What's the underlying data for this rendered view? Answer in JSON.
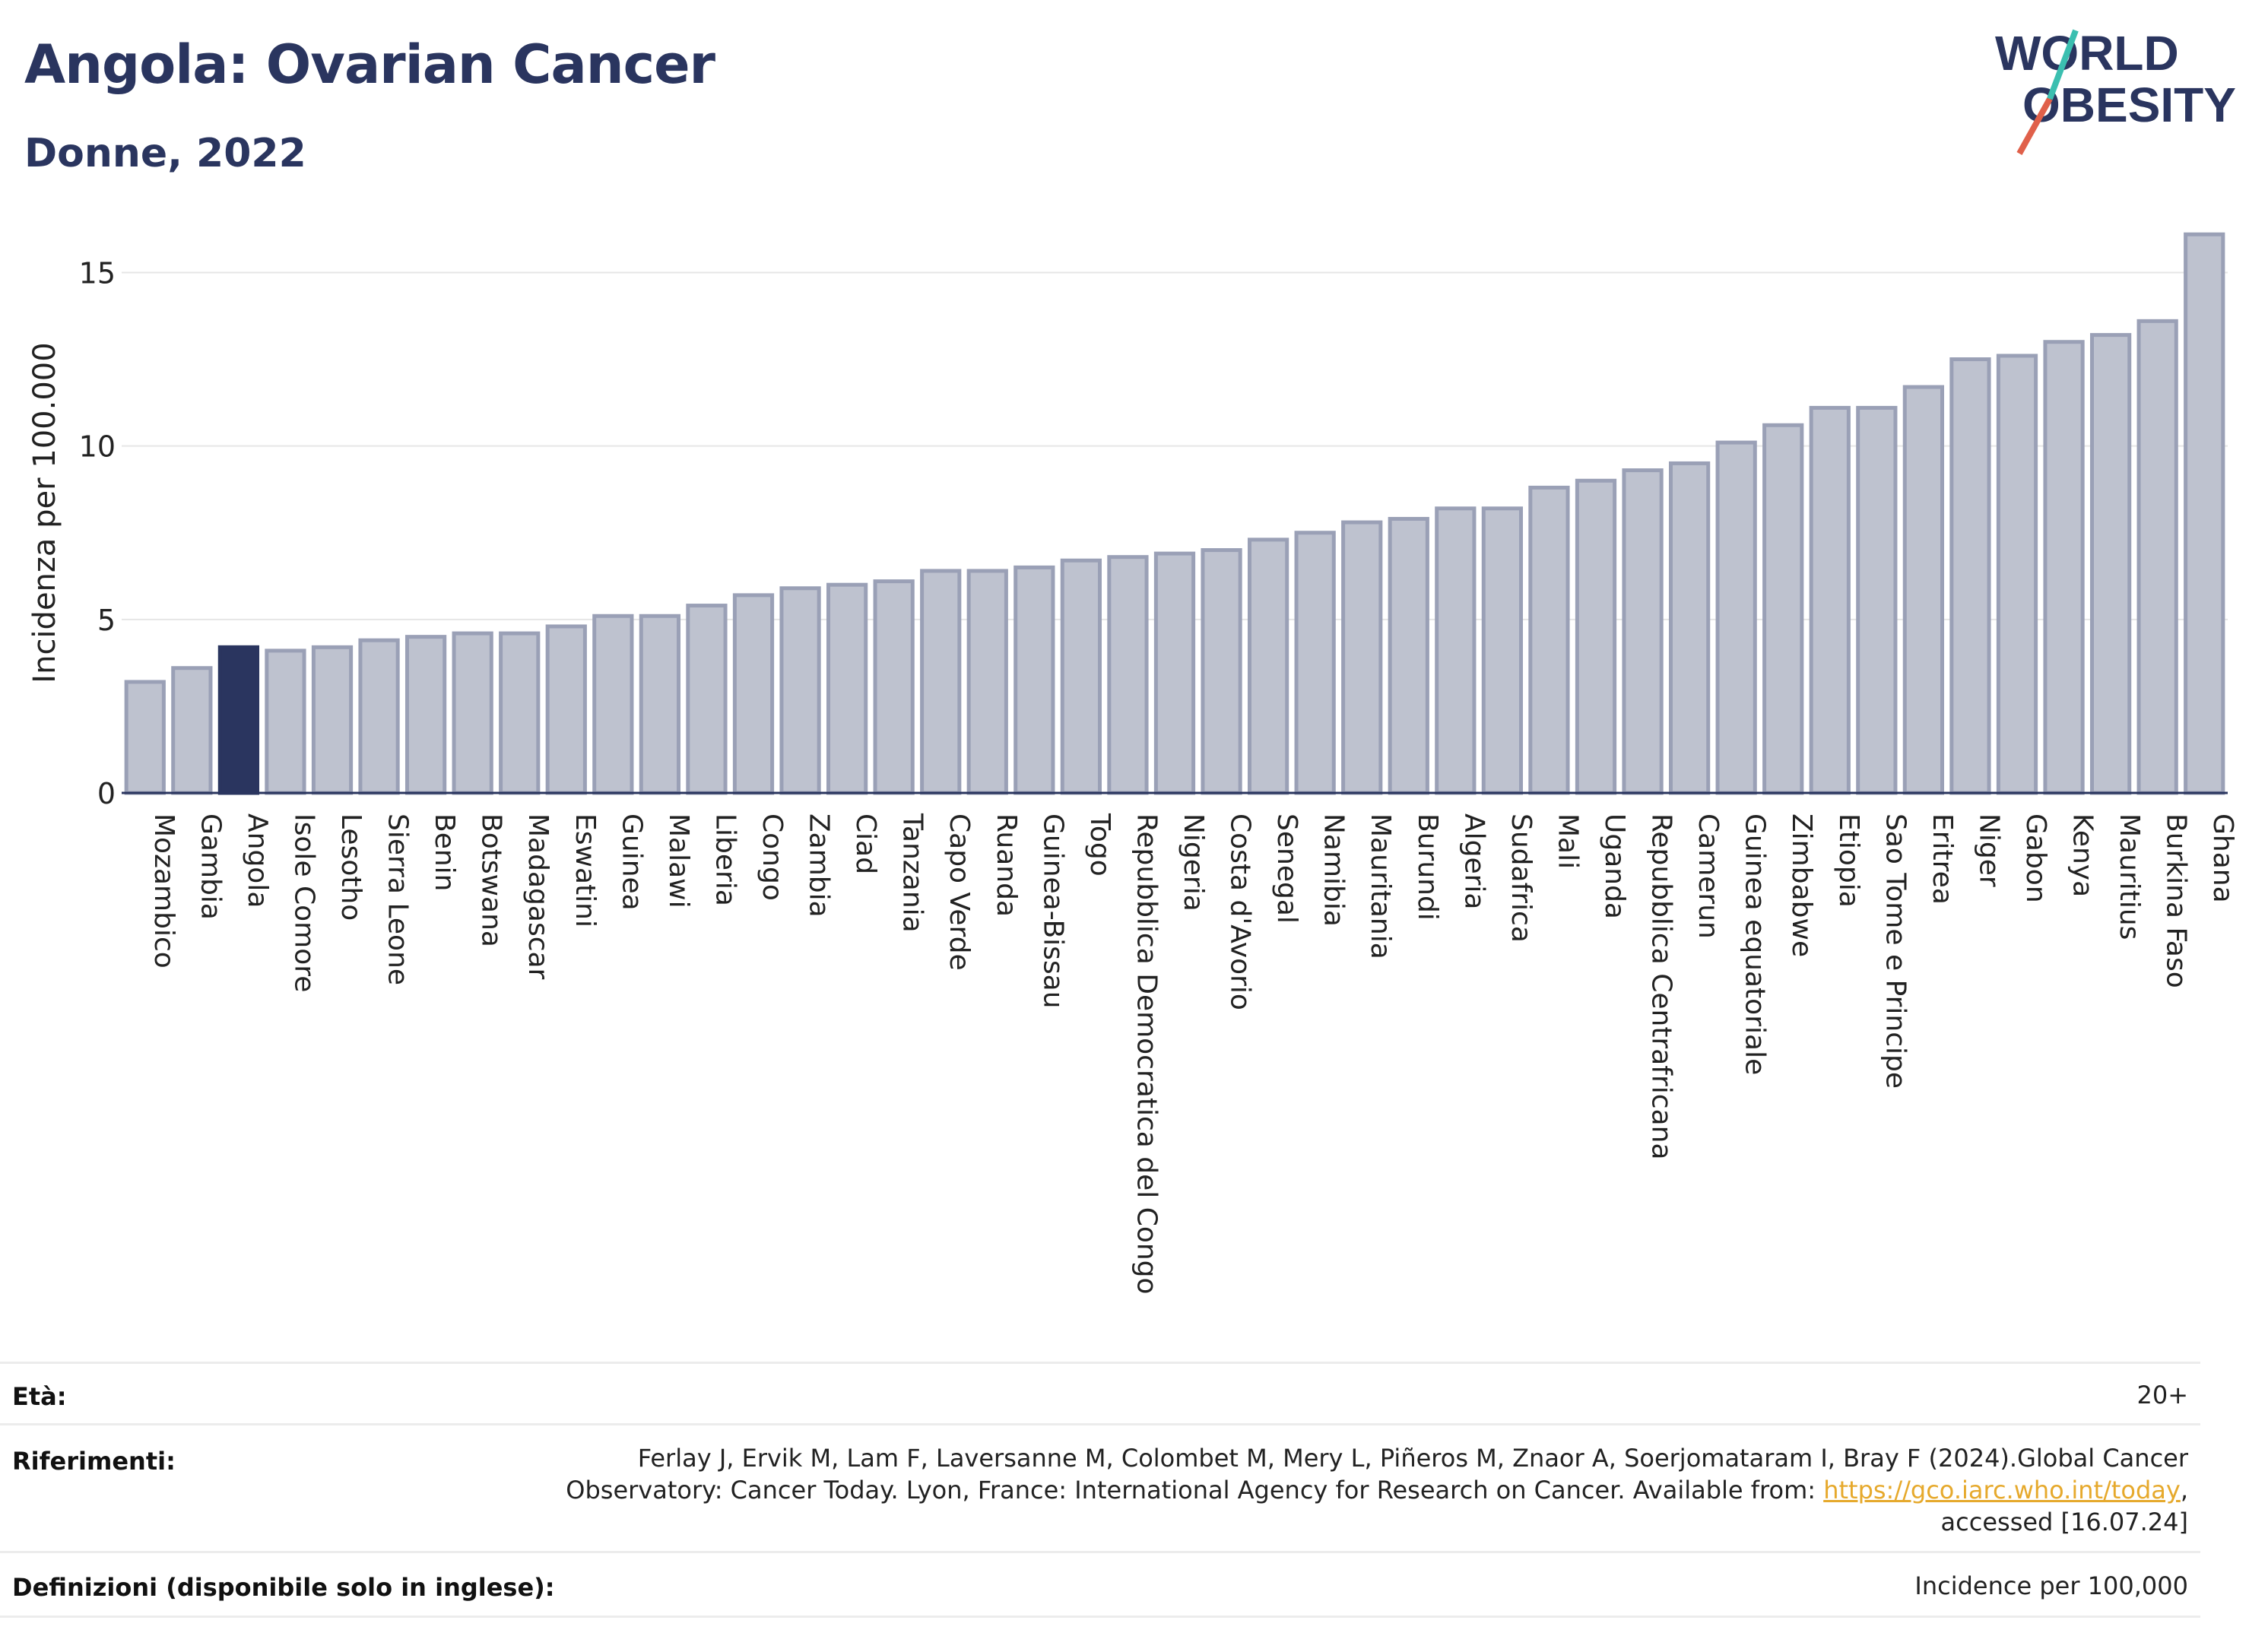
{
  "header": {
    "title": "Angola: Ovarian Cancer",
    "subtitle": "Donne, 2022"
  },
  "logo": {
    "line1": "WORLD",
    "line2": "OBESITY",
    "colors": {
      "text": "#2a355f",
      "slash_teal": "#3bbfb0",
      "slash_red": "#e0604a"
    }
  },
  "chart_data": {
    "type": "bar",
    "ylabel": "Incidenza per 100.000",
    "xlabel": "",
    "ylim": [
      0,
      16.5
    ],
    "yticks": [
      0,
      5,
      10,
      15
    ],
    "grid": true,
    "highlight": "Angola",
    "colors": {
      "bar": "#bec2cf",
      "bar_border": "#9aa0b6",
      "highlight": "#2a355f",
      "axis": "#2a355f",
      "grid": "#e6e6e6"
    },
    "categories": [
      "Mozambico",
      "Gambia",
      "Angola",
      "Isole Comore",
      "Lesotho",
      "Sierra Leone",
      "Benin",
      "Botswana",
      "Madagascar",
      "Eswatini",
      "Guinea",
      "Malawi",
      "Liberia",
      "Congo",
      "Zambia",
      "Ciad",
      "Tanzania",
      "Capo Verde",
      "Ruanda",
      "Guinea-Bissau",
      "Togo",
      "Repubblica Democratica del Congo",
      "Nigeria",
      "Costa d'Avorio",
      "Senegal",
      "Namibia",
      "Mauritania",
      "Burundi",
      "Algeria",
      "Sudafrica",
      "Mali",
      "Uganda",
      "Repubblica Centrafricana",
      "Camerun",
      "Guinea equatoriale",
      "Zimbabwe",
      "Etiopia",
      "Sao Tome e Principe",
      "Eritrea",
      "Niger",
      "Gabon",
      "Kenya",
      "Mauritius",
      "Burkina Faso",
      "Ghana"
    ],
    "values": [
      3.2,
      3.6,
      4.2,
      4.1,
      4.2,
      4.4,
      4.5,
      4.6,
      4.6,
      4.8,
      5.1,
      5.1,
      5.4,
      5.7,
      5.9,
      6.0,
      6.1,
      6.4,
      6.4,
      6.5,
      6.7,
      6.8,
      6.9,
      7.0,
      7.3,
      7.5,
      7.8,
      7.9,
      8.2,
      8.2,
      8.8,
      9.0,
      9.3,
      9.5,
      10.1,
      10.6,
      11.1,
      11.1,
      11.7,
      12.5,
      12.6,
      13.0,
      13.2,
      13.6,
      16.1
    ]
  },
  "info": {
    "age_label": "Età:",
    "age_value": "20+",
    "refs_label": "Riferimenti:",
    "refs_line1": "Ferlay J, Ervik M, Lam F, Laversanne M, Colombet M, Mery L, Piñeros M, Znaor A, Soerjomataram I, Bray F (2024).Global Cancer",
    "refs_line2_pre": "Observatory: Cancer Today. Lyon, France: International Agency for Research on Cancer. Available from: ",
    "refs_link": "https://gco.iarc.who.int/today",
    "refs_line2_post": ",",
    "refs_line3": "accessed [16.07.24]",
    "defs_label": "Definizioni (disponibile solo in inglese):",
    "defs_value": "Incidence per 100,000"
  }
}
